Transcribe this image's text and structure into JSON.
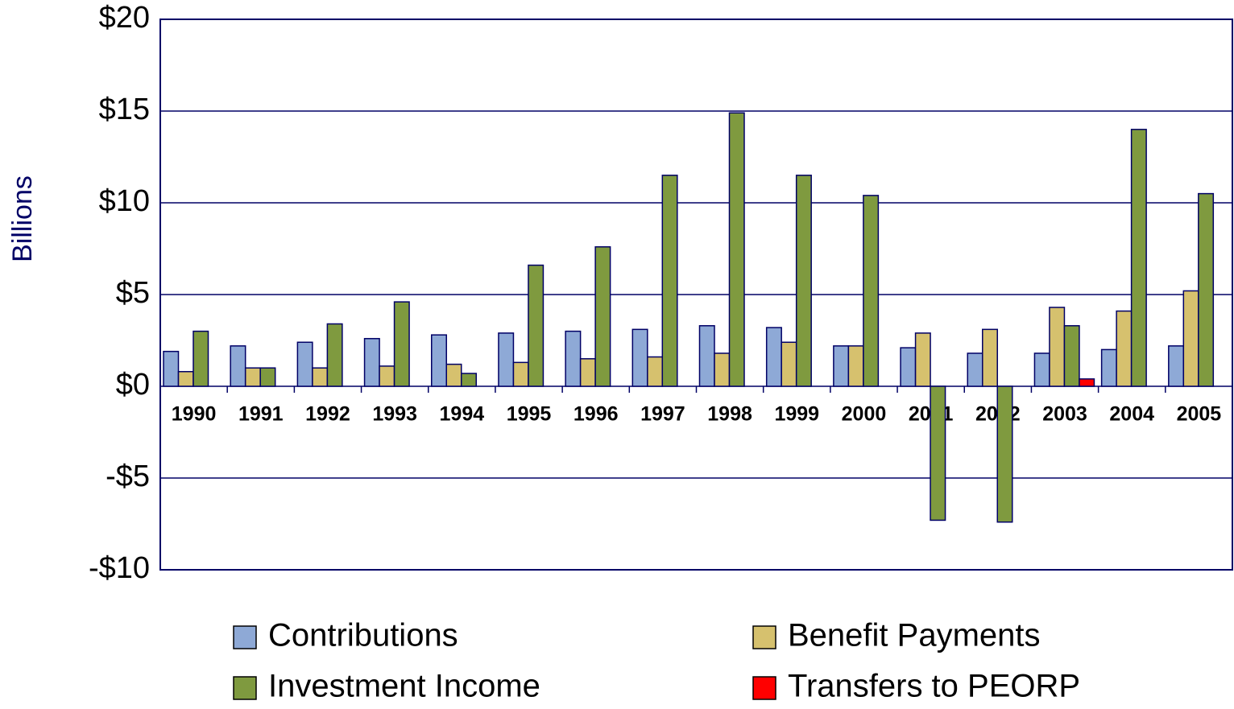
{
  "chart_data": {
    "type": "bar",
    "y_label": "Billions",
    "categories": [
      "1990",
      "1991",
      "1992",
      "1993",
      "1994",
      "1995",
      "1996",
      "1997",
      "1998",
      "1999",
      "2000",
      "2001",
      "2002",
      "2003",
      "2004",
      "2005"
    ],
    "series": [
      {
        "name": "Contributions",
        "color": "#8ea9d6",
        "values": [
          1.9,
          2.2,
          2.4,
          2.6,
          2.8,
          2.9,
          3.0,
          3.1,
          3.3,
          3.2,
          2.2,
          2.1,
          1.8,
          1.8,
          2.0,
          2.2
        ]
      },
      {
        "name": "Benefit Payments",
        "color": "#d6c16e",
        "values": [
          0.8,
          1.0,
          1.0,
          1.1,
          1.2,
          1.3,
          1.5,
          1.6,
          1.8,
          2.4,
          2.2,
          2.9,
          3.1,
          4.3,
          4.1,
          5.2
        ]
      },
      {
        "name": "Investment Income",
        "color": "#7f9a3f",
        "values": [
          3.0,
          1.0,
          3.4,
          4.6,
          0.7,
          6.6,
          7.6,
          11.5,
          14.9,
          11.5,
          10.4,
          -7.3,
          -7.4,
          3.3,
          14.0,
          10.5
        ]
      },
      {
        "name": "Transfers to PEORP",
        "color": "#ff0000",
        "values": [
          null,
          null,
          null,
          null,
          null,
          null,
          null,
          null,
          null,
          null,
          null,
          null,
          null,
          0.4,
          null,
          null
        ]
      }
    ],
    "ylim": [
      -10,
      20
    ],
    "yticks": [
      {
        "value": -10,
        "label": "-$10"
      },
      {
        "value": -5,
        "label": "-$5"
      },
      {
        "value": 0,
        "label": "$0"
      },
      {
        "value": 5,
        "label": "$5"
      },
      {
        "value": 10,
        "label": "$10"
      },
      {
        "value": 15,
        "label": "$15"
      },
      {
        "value": 20,
        "label": "$20"
      }
    ],
    "grid": true
  }
}
